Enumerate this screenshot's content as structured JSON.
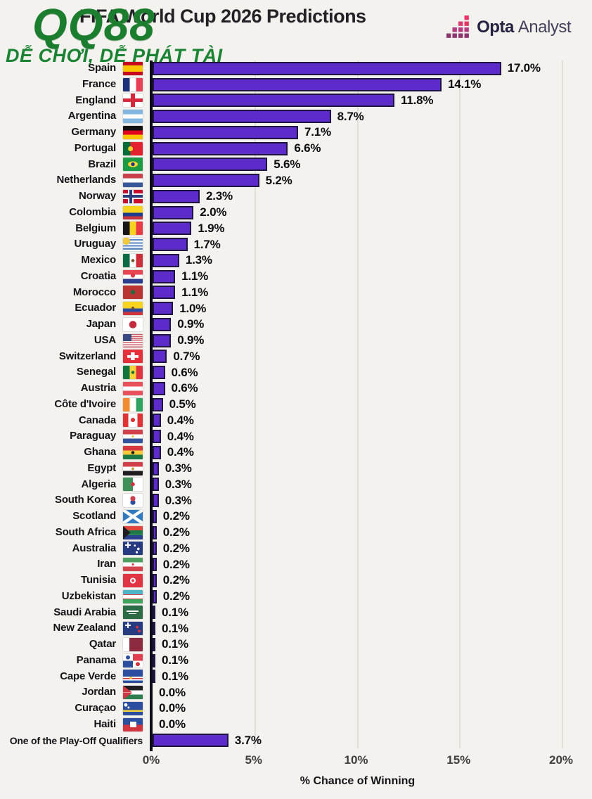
{
  "title": "FIFA World Cup 2026 Predictions",
  "watermark": {
    "line1": "QQ88",
    "line2": "DỄ CHƠI, DỄ PHÁT TÀI",
    "color": "#1b7e2f"
  },
  "logo": {
    "opta": "Opta",
    "analyst": "Analyst"
  },
  "colors": {
    "background": "#f4f2ee",
    "bar_fill": "#5c2bc9",
    "bar_border": "#1e1440",
    "axis_line": "#0f0c1d",
    "gridline": "#e2dfdb"
  },
  "chart_data": {
    "type": "bar",
    "orientation": "horizontal",
    "title": "FIFA World Cup 2026 Predictions",
    "xlabel": "% Chance of Winning",
    "xlim": [
      0,
      20
    ],
    "grid": true,
    "xticks": [
      "0%",
      "5%",
      "10%",
      "15%",
      "20%"
    ],
    "rows": [
      {
        "country": "Spain",
        "value": 17.0,
        "label": "17.0%",
        "flag": "linear-gradient(180deg,#c60b1e 0 26%,#ffc400 26% 74%,#c60b1e 74% 100%)"
      },
      {
        "country": "France",
        "value": 14.1,
        "label": "14.1%",
        "flag": "linear-gradient(90deg,#1b2f7a 0 34%,#fff 34% 66%,#e84057 66% 100%)"
      },
      {
        "country": "England",
        "value": 11.8,
        "label": "11.8%",
        "flag": "linear-gradient(#d6273b,#d6273b) 50% 50%/100% 26% no-repeat,linear-gradient(#d6273b,#d6273b) 50% 50%/22% 100% no-repeat,#fff"
      },
      {
        "country": "Argentina",
        "value": 8.7,
        "label": "8.7%",
        "flag": "linear-gradient(180deg,#85b8e0 0 34%,#fff 34% 66%,#85b8e0 66% 100%)"
      },
      {
        "country": "Germany",
        "value": 7.1,
        "label": "7.1%",
        "flag": "linear-gradient(180deg,#14100f 0 34%,#e1001f 34% 66%,#f6c500 66% 100%)"
      },
      {
        "country": "Portugal",
        "value": 6.6,
        "label": "6.6%",
        "flag": "radial-gradient(circle at 38% 50%,#f3d02b 17%,transparent 18%),linear-gradient(90deg,#046a38 0 38%,#e4212e 38% 100%)"
      },
      {
        "country": "Brazil",
        "value": 5.6,
        "label": "5.6%",
        "flag": "radial-gradient(circle at 50% 50%,#17338f 15%,transparent 16%),radial-gradient(ellipse 42% 36% at 50% 50%,#ffd52e 58%,transparent 60%),#1c9a44"
      },
      {
        "country": "Netherlands",
        "value": 5.2,
        "label": "5.2%",
        "flag": "linear-gradient(180deg,#c8414b 0 34%,#fff 34% 66%,#39589c 66% 100%)"
      },
      {
        "country": "Norway",
        "value": 2.3,
        "label": "2.3%",
        "flag": "linear-gradient(#2b3c7e,#2b3c7e) 9px 0px/4px 100% no-repeat,linear-gradient(#2b3c7e,#2b3c7e) 0px 7.5px/100% 4px no-repeat,linear-gradient(#fff,#fff) 7px 0px/8px 100% no-repeat,linear-gradient(#fff,#fff) 0px 5.5px/100% 8px no-repeat,#c8102e"
      },
      {
        "country": "Colombia",
        "value": 2.0,
        "label": "2.0%",
        "flag": "linear-gradient(180deg,#f7d21e 0 50%,#1c3d8f 50% 76%,#c8313e 76% 100%)"
      },
      {
        "country": "Belgium",
        "value": 1.9,
        "label": "1.9%",
        "flag": "linear-gradient(90deg,#17141a 0 34%,#f7d21e 34% 66%,#ea3a43 66% 100%)"
      },
      {
        "country": "Uruguay",
        "value": 1.7,
        "label": "1.7%",
        "flag": "radial-gradient(circle at 16% 24%,#f0c93c 19%,transparent 20%),repeating-linear-gradient(180deg,#fff 0 2.1px,#5a86c5 2.1px 4.2px)"
      },
      {
        "country": "Mexico",
        "value": 1.3,
        "label": "1.3%",
        "flag": "radial-gradient(circle at 50% 50%,#7a5230 13%,transparent 14%),linear-gradient(90deg,#0b6b44 0 34%,transparent 34% 66%,#cc2f3c 66% 100%),#fff"
      },
      {
        "country": "Croatia",
        "value": 1.1,
        "label": "1.1%",
        "flag": "radial-gradient(circle at 50% 40%,#dd3846 16%,transparent 17%),linear-gradient(180deg,#e94653 0 33%,#fff 33% 67%,#2b3c8f 67% 100%)"
      },
      {
        "country": "Morocco",
        "value": 1.1,
        "label": "1.1%",
        "flag": "radial-gradient(circle at 50% 50%,#1d6b42 17%,transparent 18%),#bb3434"
      },
      {
        "country": "Ecuador",
        "value": 1.0,
        "label": "1.0%",
        "flag": "radial-gradient(circle at 50% 48%,#7a5230 12%,transparent 13%),linear-gradient(180deg,#f7d21e 0 50%,#2b4ea0 50% 76%,#d2343c 76% 100%)"
      },
      {
        "country": "Japan",
        "value": 0.9,
        "label": "0.9%",
        "flag": "radial-gradient(circle at 50% 50%,#c22a40 30%,transparent 32%),#fff"
      },
      {
        "country": "USA",
        "value": 0.9,
        "label": "0.9%",
        "flag": "linear-gradient(#3a4a7e,#3a4a7e) 0px 0px/44% 54% no-repeat,repeating-linear-gradient(180deg,#cf5a64 0 1.46px,#fff 1.46px 2.92px)"
      },
      {
        "country": "Switzerland",
        "value": 0.7,
        "label": "0.7%",
        "flag": "linear-gradient(#fff,#fff) 50% 50%/58% 20% no-repeat,linear-gradient(#fff,#fff) 50% 50%/20% 58% no-repeat,#e5303c"
      },
      {
        "country": "Senegal",
        "value": 0.6,
        "label": "0.6%",
        "flag": "radial-gradient(circle at 50% 50%,#13753e 13%,transparent 14%),linear-gradient(90deg,#13753e 0 34%,#f7d337 34% 66%,#e03540 66% 100%)"
      },
      {
        "country": "Austria",
        "value": 0.6,
        "label": "0.6%",
        "flag": "linear-gradient(180deg,#e8505b 0 34%,#fff 34% 66%,#e8505b 66% 100%)"
      },
      {
        "country": "Côte d'Ivoire",
        "value": 0.5,
        "label": "0.5%",
        "flag": "linear-gradient(90deg,#f28a30 0 34%,#fff 34% 66%,#31a462 66% 100%)"
      },
      {
        "country": "Canada",
        "value": 0.4,
        "label": "0.4%",
        "flag": "linear-gradient(90deg,#e13336 0 26%,transparent 26% 74%,#e13336 74% 100%),radial-gradient(circle at 50% 48%,#e13336 17%,transparent 18%),#fff"
      },
      {
        "country": "Paraguay",
        "value": 0.4,
        "label": "0.4%",
        "flag": "radial-gradient(circle at 50% 50%,#e8c94e 9%,transparent 10%),linear-gradient(180deg,#d2414b 0 34%,#fff 34% 66%,#31549c 66% 100%)"
      },
      {
        "country": "Ghana",
        "value": 0.4,
        "label": "0.4%",
        "flag": "radial-gradient(circle at 50% 50%,#1c1c1c 13%,transparent 14%),linear-gradient(180deg,#d5373f 0 34%,#f5c93a 34% 66%,#1b7a45 66% 100%)"
      },
      {
        "country": "Egypt",
        "value": 0.3,
        "label": "0.3%",
        "flag": "radial-gradient(circle at 50% 50%,#c3a24a 11%,transparent 12%),linear-gradient(180deg,#d4404a 0 34%,#fff 34% 66%,#1f1d22 66% 100%)"
      },
      {
        "country": "Algeria",
        "value": 0.3,
        "label": "0.3%",
        "flag": "radial-gradient(circle at 50% 50%,#d2343f 16%,transparent 17%),linear-gradient(90deg,#3f8f58 0 50%,#fff 50% 100%)"
      },
      {
        "country": "South Korea",
        "value": 0.3,
        "label": "0.3%",
        "flag": "radial-gradient(circle at 50% 36%,#cd4050 19%,transparent 20%),radial-gradient(circle at 50% 64%,#2b4ea0 19%,transparent 20%),#fff"
      },
      {
        "country": "Scotland",
        "value": 0.2,
        "label": "0.2%",
        "flag": "linear-gradient(to top right,transparent 42%,#fff 44% 56%,transparent 58%),linear-gradient(to bottom right,transparent 42%,#fff 44% 56%,transparent 58%),#2f7ac0"
      },
      {
        "country": "South Africa",
        "value": 0.2,
        "label": "0.2%",
        "flag": "linear-gradient(to bottom left,transparent 48%,#1f1d22 50%) 0px 0px/38% 50% no-repeat,linear-gradient(to top left,transparent 48%,#1f1d22 50%) 0px 100%/38% 50% no-repeat,linear-gradient(#1b7a45,#1b7a45) 0px 50%/100% 36% no-repeat,linear-gradient(180deg,#e0453c 0 32%,#fff 32% 68%,#2b3f8f 68% 100%)"
      },
      {
        "country": "Australia",
        "value": 0.2,
        "label": "0.2%",
        "flag": "radial-gradient(circle at 78% 55%,#fff 7%,transparent 8%),radial-gradient(circle at 60% 30%,#fff 6%,transparent 7%),radial-gradient(circle at 70% 80%,#fff 6%,transparent 7%),linear-gradient(#fff,#fff) 3px 4px/8px 2px no-repeat,linear-gradient(#fff,#fff) 6px 1px/2px 8px no-repeat,#263b80"
      },
      {
        "country": "Iran",
        "value": 0.2,
        "label": "0.2%",
        "flag": "radial-gradient(circle at 50% 50%,#cf3f47 9%,transparent 10%),linear-gradient(180deg,#4d9e5f 0 34%,#fff 34% 66%,#d2454d 66% 100%)"
      },
      {
        "country": "Tunisia",
        "value": 0.2,
        "label": "0.2%",
        "flag": "radial-gradient(circle at 50% 50%,#e23544 11%,transparent 12%),radial-gradient(circle at 50% 50%,#fff 23%,transparent 24%),#e23544"
      },
      {
        "country": "Uzbekistan",
        "value": 0.2,
        "label": "0.2%",
        "flag": "linear-gradient(180deg,#4fb6c9 0 32%,#d2454d 32% 37%,#fff 37% 63%,#d2454d 63% 68%,#3fa45c 68% 100%)"
      },
      {
        "country": "Saudi Arabia",
        "value": 0.1,
        "label": "0.1%",
        "flag": "linear-gradient(#fff,#fff) 50% 38%/62% 13% no-repeat,linear-gradient(#fff,#fff) 50% 62%/40% 7% no-repeat,#2b6b46"
      },
      {
        "country": "New Zealand",
        "value": 0.1,
        "label": "0.1%",
        "flag": "radial-gradient(circle at 72% 40%,#d2343f 8%,transparent 9%),radial-gradient(circle at 82% 70%,#d2343f 7%,transparent 8%),linear-gradient(#fff,#fff) 3px 4px/8px 2px no-repeat,linear-gradient(#fff,#fff) 6px 1px/2px 8px no-repeat,#263b80"
      },
      {
        "country": "Qatar",
        "value": 0.1,
        "label": "0.1%",
        "flag": "linear-gradient(90deg,#fff 0 32%,#8c2b3f 32% 100%)"
      },
      {
        "country": "Panama",
        "value": 0.1,
        "label": "0.1%",
        "flag": "radial-gradient(circle at 25% 25%,#2b4ea0 11%,transparent 12%),radial-gradient(circle at 75% 75%,#d2343f 11%,transparent 12%),conic-gradient(from 0deg at 50% 50%,#e04050 0 90deg,#fff 90deg 180deg,#2b4e9c 180deg 270deg,#fff 270deg 360deg)"
      },
      {
        "country": "Cape Verde",
        "value": 0.1,
        "label": "0.1%",
        "flag": "radial-gradient(circle at 40% 62%,#f0c93c 9%,transparent 10%),linear-gradient(180deg,transparent 0 52%,#fff 52% 62%,#cf3540 62% 72%,#fff 72% 82%,transparent 82%),#2b4ea0"
      },
      {
        "country": "Jordan",
        "value": 0.0,
        "label": "0.0%",
        "flag": "linear-gradient(to bottom left,transparent 48%,#ce3642 50%) 0px 0px/46% 50% no-repeat,linear-gradient(to top left,transparent 48%,#ce3642 50%) 0px 100%/46% 50% no-repeat,linear-gradient(180deg,#1f1d22 0 34%,#fff 34% 66%,#2e7d4f 66% 100%)"
      },
      {
        "country": "Curaçao",
        "value": 0.0,
        "label": "0.0%",
        "flag": "radial-gradient(circle at 14% 22%,#fff 8%,transparent 9%),radial-gradient(circle at 28% 42%,#fff 6%,transparent 7%),linear-gradient(180deg,transparent 0 60%,#f2d53c 60% 74%,transparent 74%),#2b4ea0"
      },
      {
        "country": "Haiti",
        "value": 0.0,
        "label": "0.0%",
        "flag": "linear-gradient(#fff,#fff) 50% 50%/32% 42% no-repeat,linear-gradient(180deg,#2b4ea0 0 50%,#d2343f 50% 100%)"
      },
      {
        "country": "One of the Play-Off Qualifiers",
        "value": 3.7,
        "label": "3.7%",
        "flag": null
      }
    ]
  }
}
